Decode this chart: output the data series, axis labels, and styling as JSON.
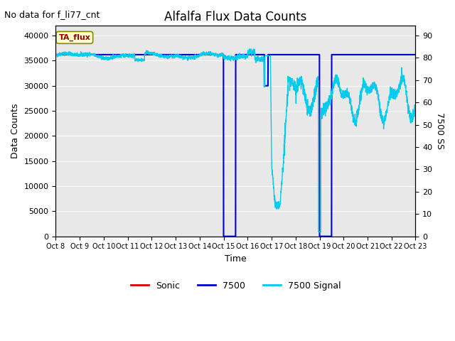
{
  "title": "Alfalfa Flux Data Counts",
  "top_left_text": "No data for f_li77_cnt",
  "xlabel": "Time",
  "ylabel_left": "Data Counts",
  "ylabel_right": "7500 SS",
  "text_annotation": "TA_flux",
  "ylim_left": [
    0,
    42000
  ],
  "ylim_right": [
    0,
    94.5
  ],
  "yticks_left": [
    0,
    5000,
    10000,
    15000,
    20000,
    25000,
    30000,
    35000,
    40000
  ],
  "yticks_right": [
    0,
    10,
    20,
    30,
    40,
    50,
    60,
    70,
    80,
    90
  ],
  "xtick_labels": [
    "Oct 8",
    "Oct 9",
    "Oct 10",
    "Oct 11",
    "Oct 12",
    "Oct 13",
    "Oct 14",
    "Oct 15",
    "Oct 16",
    "Oct 17",
    "Oct 18",
    "Oct 19",
    "Oct 20",
    "Oct 21",
    "Oct 22",
    "Oct 23"
  ],
  "bg_color": "#e8e8e8",
  "fig_color": "#ffffff",
  "grid_color": "#ffffff",
  "sonic_color": "#dd0000",
  "cnt7500_color": "#0000cc",
  "signal_color": "#00ccee",
  "legend_items": [
    "Sonic",
    "7500",
    "7500 Signal"
  ]
}
